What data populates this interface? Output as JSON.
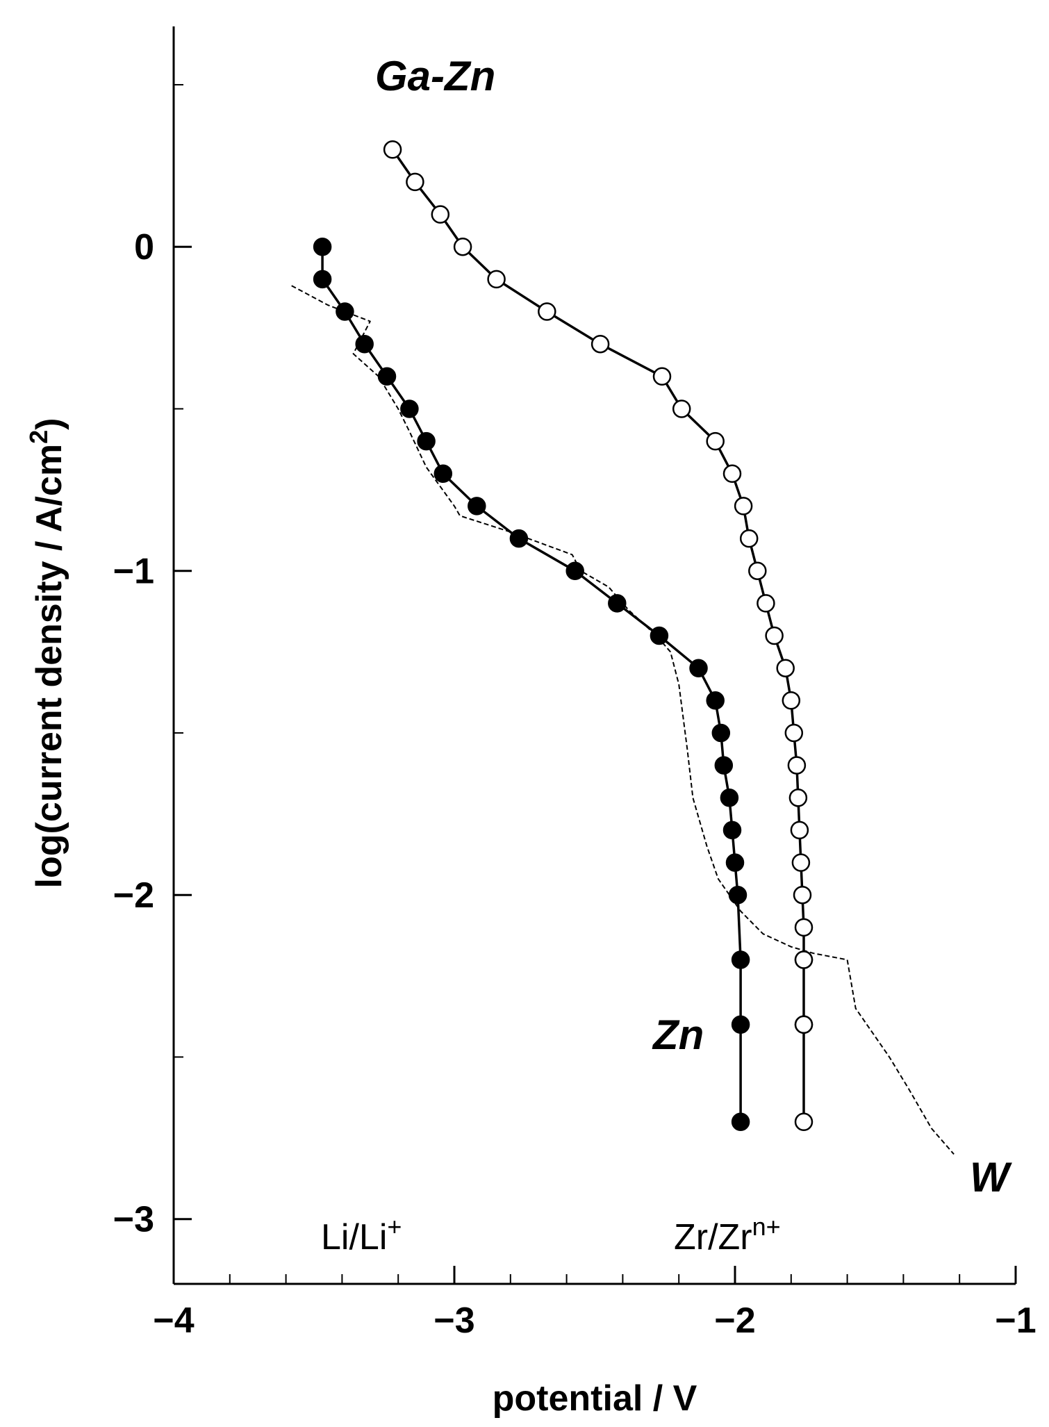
{
  "chart_data": {
    "type": "line",
    "title": "",
    "xlabel": "potential / V",
    "ylabel_main": "log(current density / A/cm",
    "ylabel_sup": "2",
    "ylabel_close": ")",
    "xlim": [
      -4,
      -1
    ],
    "ylim": [
      -3.2,
      0.68
    ],
    "x_ticks": [
      -4,
      -3,
      -2,
      -1
    ],
    "x_tick_labels": [
      "−4",
      "−3",
      "−2",
      "−1"
    ],
    "x_minor_step": 0.2,
    "y_ticks": [
      0,
      -1,
      -2,
      -3
    ],
    "y_tick_labels": [
      "0",
      "−1",
      "−2",
      "−3"
    ],
    "y_minor_step": 0.5,
    "grid": false,
    "series": [
      {
        "name": "Ga-Zn",
        "marker": "open-circle",
        "line": "solid",
        "x": [
          -3.22,
          -3.14,
          -3.05,
          -2.97,
          -2.85,
          -2.67,
          -2.48,
          -2.26,
          -2.19,
          -2.07,
          -2.01,
          -1.97,
          -1.95,
          -1.92,
          -1.89,
          -1.86,
          -1.82,
          -1.8,
          -1.79,
          -1.78,
          -1.775,
          -1.77,
          -1.765,
          -1.76,
          -1.755,
          -1.755,
          -1.755,
          -1.755,
          -1.755,
          -1.755
        ],
        "y": [
          0.3,
          0.2,
          0.1,
          0.0,
          -0.1,
          -0.2,
          -0.3,
          -0.4,
          -0.5,
          -0.6,
          -0.7,
          -0.8,
          -0.9,
          -1.0,
          -1.1,
          -1.2,
          -1.3,
          -1.4,
          -1.5,
          -1.6,
          -1.7,
          -1.8,
          -1.9,
          -2.0,
          -2.1,
          -2.2,
          -2.2,
          -2.4,
          -2.4,
          -2.7
        ]
      },
      {
        "name": "Zn",
        "marker": "filled-circle",
        "line": "solid",
        "x": [
          -3.47,
          -3.47,
          -3.39,
          -3.32,
          -3.24,
          -3.16,
          -3.1,
          -3.04,
          -2.92,
          -2.77,
          -2.57,
          -2.42,
          -2.27,
          -2.13,
          -2.07,
          -2.05,
          -2.04,
          -2.02,
          -2.01,
          -2.0,
          -1.99,
          -1.98,
          -1.98,
          -1.98
        ],
        "y": [
          0.0,
          -0.1,
          -0.2,
          -0.3,
          -0.4,
          -0.5,
          -0.6,
          -0.7,
          -0.8,
          -0.9,
          -1.0,
          -1.1,
          -1.2,
          -1.3,
          -1.4,
          -1.5,
          -1.6,
          -1.7,
          -1.8,
          -1.9,
          -2.0,
          -2.2,
          -2.4,
          -2.7
        ]
      },
      {
        "name": "W",
        "marker": "none",
        "line": "dashed",
        "x": [
          -3.58,
          -3.45,
          -3.3,
          -3.36,
          -3.27,
          -3.2,
          -3.16,
          -3.1,
          -3.0,
          -2.98,
          -2.8,
          -2.58,
          -2.55,
          -2.45,
          -2.38,
          -2.28,
          -2.23,
          -2.2,
          -2.17,
          -2.15,
          -2.1,
          -2.06,
          -1.98,
          -1.9,
          -1.8,
          -1.72,
          -1.6,
          -1.57,
          -1.45,
          -1.38,
          -1.3,
          -1.22
        ],
        "y": [
          -0.12,
          -0.18,
          -0.23,
          -0.33,
          -0.4,
          -0.5,
          -0.57,
          -0.68,
          -0.8,
          -0.83,
          -0.88,
          -0.95,
          -1.0,
          -1.05,
          -1.12,
          -1.2,
          -1.25,
          -1.35,
          -1.55,
          -1.7,
          -1.85,
          -1.95,
          -2.05,
          -2.12,
          -2.16,
          -2.18,
          -2.2,
          -2.35,
          -2.5,
          -2.6,
          -2.72,
          -2.8
        ]
      }
    ],
    "annotations": {
      "series_labels": [
        "Ga-Zn",
        "Zn",
        "W"
      ],
      "reference_labels": [
        {
          "base": "Li/Li",
          "sup": "+",
          "x": -3.5,
          "y": -3.05
        },
        {
          "base": "Zr/Zr",
          "sup": "n+",
          "x": -1.8,
          "y": -3.05
        }
      ]
    }
  }
}
